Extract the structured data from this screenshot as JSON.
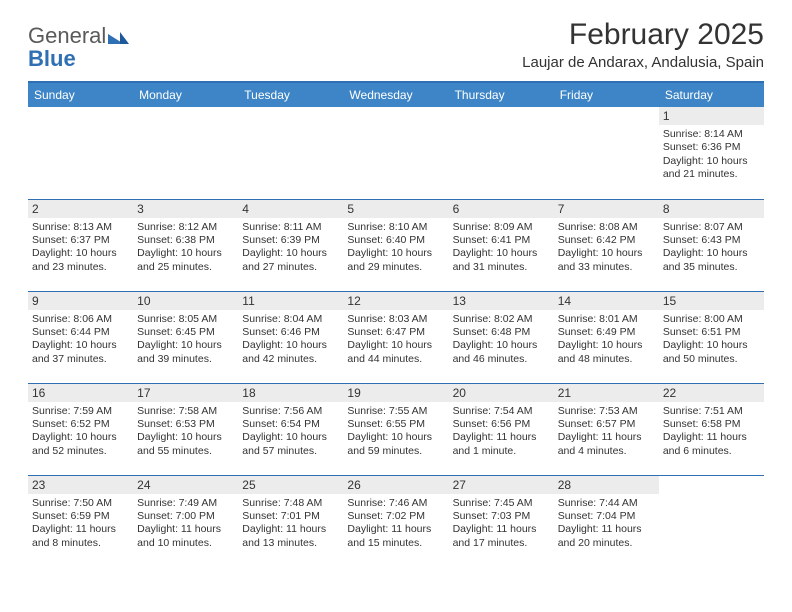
{
  "brand": {
    "part1": "General",
    "part2": "Blue"
  },
  "header": {
    "title": "February 2025",
    "subtitle": "Laujar de Andarax, Andalusia, Spain"
  },
  "colors": {
    "header_bg": "#3d85c6",
    "rule": "#2f6fb3",
    "daynum_bg": "#ececec",
    "text": "#333333",
    "page_bg": "#ffffff"
  },
  "weekdays": [
    "Sunday",
    "Monday",
    "Tuesday",
    "Wednesday",
    "Thursday",
    "Friday",
    "Saturday"
  ],
  "weeks": [
    [
      null,
      null,
      null,
      null,
      null,
      null,
      {
        "n": "1",
        "sunrise": "8:14 AM",
        "sunset": "6:36 PM",
        "daylight": "10 hours and 21 minutes."
      }
    ],
    [
      {
        "n": "2",
        "sunrise": "8:13 AM",
        "sunset": "6:37 PM",
        "daylight": "10 hours and 23 minutes."
      },
      {
        "n": "3",
        "sunrise": "8:12 AM",
        "sunset": "6:38 PM",
        "daylight": "10 hours and 25 minutes."
      },
      {
        "n": "4",
        "sunrise": "8:11 AM",
        "sunset": "6:39 PM",
        "daylight": "10 hours and 27 minutes."
      },
      {
        "n": "5",
        "sunrise": "8:10 AM",
        "sunset": "6:40 PM",
        "daylight": "10 hours and 29 minutes."
      },
      {
        "n": "6",
        "sunrise": "8:09 AM",
        "sunset": "6:41 PM",
        "daylight": "10 hours and 31 minutes."
      },
      {
        "n": "7",
        "sunrise": "8:08 AM",
        "sunset": "6:42 PM",
        "daylight": "10 hours and 33 minutes."
      },
      {
        "n": "8",
        "sunrise": "8:07 AM",
        "sunset": "6:43 PM",
        "daylight": "10 hours and 35 minutes."
      }
    ],
    [
      {
        "n": "9",
        "sunrise": "8:06 AM",
        "sunset": "6:44 PM",
        "daylight": "10 hours and 37 minutes."
      },
      {
        "n": "10",
        "sunrise": "8:05 AM",
        "sunset": "6:45 PM",
        "daylight": "10 hours and 39 minutes."
      },
      {
        "n": "11",
        "sunrise": "8:04 AM",
        "sunset": "6:46 PM",
        "daylight": "10 hours and 42 minutes."
      },
      {
        "n": "12",
        "sunrise": "8:03 AM",
        "sunset": "6:47 PM",
        "daylight": "10 hours and 44 minutes."
      },
      {
        "n": "13",
        "sunrise": "8:02 AM",
        "sunset": "6:48 PM",
        "daylight": "10 hours and 46 minutes."
      },
      {
        "n": "14",
        "sunrise": "8:01 AM",
        "sunset": "6:49 PM",
        "daylight": "10 hours and 48 minutes."
      },
      {
        "n": "15",
        "sunrise": "8:00 AM",
        "sunset": "6:51 PM",
        "daylight": "10 hours and 50 minutes."
      }
    ],
    [
      {
        "n": "16",
        "sunrise": "7:59 AM",
        "sunset": "6:52 PM",
        "daylight": "10 hours and 52 minutes."
      },
      {
        "n": "17",
        "sunrise": "7:58 AM",
        "sunset": "6:53 PM",
        "daylight": "10 hours and 55 minutes."
      },
      {
        "n": "18",
        "sunrise": "7:56 AM",
        "sunset": "6:54 PM",
        "daylight": "10 hours and 57 minutes."
      },
      {
        "n": "19",
        "sunrise": "7:55 AM",
        "sunset": "6:55 PM",
        "daylight": "10 hours and 59 minutes."
      },
      {
        "n": "20",
        "sunrise": "7:54 AM",
        "sunset": "6:56 PM",
        "daylight": "11 hours and 1 minute."
      },
      {
        "n": "21",
        "sunrise": "7:53 AM",
        "sunset": "6:57 PM",
        "daylight": "11 hours and 4 minutes."
      },
      {
        "n": "22",
        "sunrise": "7:51 AM",
        "sunset": "6:58 PM",
        "daylight": "11 hours and 6 minutes."
      }
    ],
    [
      {
        "n": "23",
        "sunrise": "7:50 AM",
        "sunset": "6:59 PM",
        "daylight": "11 hours and 8 minutes."
      },
      {
        "n": "24",
        "sunrise": "7:49 AM",
        "sunset": "7:00 PM",
        "daylight": "11 hours and 10 minutes."
      },
      {
        "n": "25",
        "sunrise": "7:48 AM",
        "sunset": "7:01 PM",
        "daylight": "11 hours and 13 minutes."
      },
      {
        "n": "26",
        "sunrise": "7:46 AM",
        "sunset": "7:02 PM",
        "daylight": "11 hours and 15 minutes."
      },
      {
        "n": "27",
        "sunrise": "7:45 AM",
        "sunset": "7:03 PM",
        "daylight": "11 hours and 17 minutes."
      },
      {
        "n": "28",
        "sunrise": "7:44 AM",
        "sunset": "7:04 PM",
        "daylight": "11 hours and 20 minutes."
      },
      null
    ]
  ],
  "labels": {
    "sunrise": "Sunrise: ",
    "sunset": "Sunset: ",
    "daylight": "Daylight: "
  }
}
